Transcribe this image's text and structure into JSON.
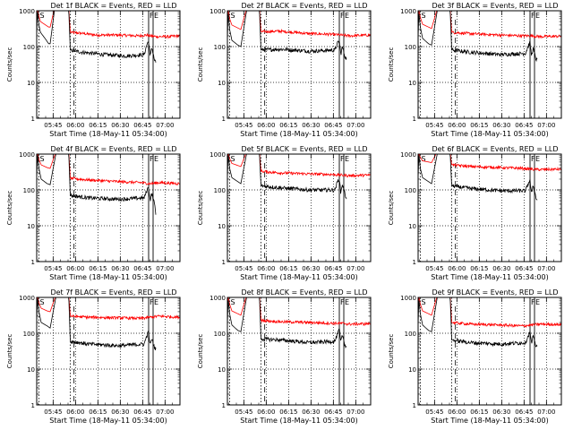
{
  "figure": {
    "ylabel": "Counts/sec",
    "xlabel": "Start Time (18-May-11 05:34:00)",
    "series_colors": {
      "events": "#000000",
      "lld": "#ff0000"
    }
  },
  "chart_data": [
    {
      "type": "line",
      "title": "Det 1f BLACK = Events, RED = LLD",
      "xlabel": "Start Time (18-May-11 05:34:00)",
      "ylabel": "Counts/sec",
      "yscale": "log",
      "ylim": [
        1,
        1000
      ],
      "y_ticks": [
        "1",
        "10",
        "100",
        "1000"
      ],
      "x_ticks": [
        "05:45",
        "06:00",
        "06:15",
        "06:30",
        "06:45",
        "07:00"
      ],
      "x_tick_minutes": [
        11,
        26,
        41,
        56,
        71,
        86
      ],
      "xlim_minutes": [
        0,
        96
      ],
      "markers": [
        {
          "label": "S",
          "minute": 1.5
        },
        {
          "label": "F",
          "minute": 75
        },
        {
          "label": "E",
          "minute": 78
        }
      ],
      "events": {
        "x_minutes": [
          0,
          0.5,
          1.5,
          2.5,
          6,
          8,
          9,
          12,
          17,
          21.5,
          22.5,
          30,
          45,
          60,
          72,
          74,
          75,
          76,
          77,
          79,
          80
        ],
        "y": [
          200,
          1000,
          400,
          250,
          160,
          120,
          120,
          1100,
          1300,
          1000,
          80,
          70,
          60,
          55,
          60,
          120,
          140,
          50,
          100,
          40,
          35
        ]
      },
      "lld": {
        "x_minutes": [
          0,
          0.5,
          1.5,
          2.5,
          6,
          8,
          9,
          12,
          17,
          21.5,
          22.5,
          28,
          40,
          55,
          68,
          74,
          76,
          80,
          88,
          96
        ],
        "y": [
          450,
          1100,
          700,
          500,
          400,
          350,
          350,
          1200,
          1300,
          1100,
          250,
          240,
          210,
          210,
          200,
          210,
          200,
          190,
          190,
          200
        ]
      }
    },
    {
      "type": "line",
      "title": "Det 2f BLACK = Events, RED = LLD",
      "xlabel": "Start Time (18-May-11 05:34:00)",
      "ylabel": "Counts/sec",
      "yscale": "log",
      "ylim": [
        1,
        1000
      ],
      "y_ticks": [
        "1",
        "10",
        "100",
        "1000"
      ],
      "x_ticks": [
        "05:45",
        "06:00",
        "06:15",
        "06:30",
        "06:45",
        "07:00"
      ],
      "x_tick_minutes": [
        11,
        26,
        41,
        56,
        71,
        86
      ],
      "xlim_minutes": [
        0,
        96
      ],
      "markers": [
        {
          "label": "S",
          "minute": 1.5
        },
        {
          "label": "F",
          "minute": 75
        },
        {
          "label": "E",
          "minute": 78
        }
      ],
      "events": {
        "x_minutes": [
          0,
          0.5,
          1.5,
          3,
          7,
          9,
          13,
          17,
          21.5,
          22.5,
          35,
          55,
          72,
          74,
          75,
          76,
          77,
          79,
          80
        ],
        "y": [
          150,
          900,
          300,
          150,
          110,
          100,
          1100,
          1300,
          1000,
          80,
          85,
          75,
          80,
          130,
          140,
          60,
          100,
          50,
          45
        ]
      },
      "lld": {
        "x_minutes": [
          0,
          0.5,
          1.5,
          3,
          7,
          9,
          13,
          17,
          21.5,
          22.5,
          35,
          55,
          70,
          76,
          82,
          96
        ],
        "y": [
          400,
          1100,
          600,
          400,
          330,
          300,
          1200,
          1300,
          1100,
          260,
          270,
          230,
          220,
          210,
          200,
          210
        ]
      }
    },
    {
      "type": "line",
      "title": "Det 3f BLACK = Events, RED = LLD",
      "xlabel": "Start Time (18-May-11 05:34:00)",
      "ylabel": "Counts/sec",
      "yscale": "log",
      "ylim": [
        1,
        1000
      ],
      "y_ticks": [
        "1",
        "10",
        "100",
        "1000"
      ],
      "x_ticks": [
        "05:45",
        "06:00",
        "06:15",
        "06:30",
        "06:45",
        "07:00"
      ],
      "x_tick_minutes": [
        11,
        26,
        41,
        56,
        71,
        86
      ],
      "xlim_minutes": [
        0,
        96
      ],
      "markers": [
        {
          "label": "S",
          "minute": 1.5
        },
        {
          "label": "F",
          "minute": 75
        },
        {
          "label": "E",
          "minute": 78
        }
      ],
      "events": {
        "x_minutes": [
          0,
          0.5,
          1.5,
          3,
          7,
          9,
          13,
          17,
          21.5,
          22.5,
          35,
          55,
          72,
          74,
          75,
          76,
          77,
          79,
          80
        ],
        "y": [
          160,
          900,
          350,
          170,
          120,
          110,
          1100,
          1300,
          1000,
          80,
          70,
          60,
          65,
          110,
          130,
          55,
          90,
          45,
          40
        ]
      },
      "lld": {
        "x_minutes": [
          0,
          0.5,
          1.5,
          3,
          7,
          9,
          13,
          17,
          21.5,
          22.5,
          35,
          55,
          70,
          76,
          82,
          96
        ],
        "y": [
          420,
          1100,
          650,
          420,
          350,
          320,
          1200,
          1300,
          1100,
          250,
          230,
          210,
          200,
          200,
          190,
          195
        ]
      }
    },
    {
      "type": "line",
      "title": "Det 4f BLACK = Events, RED = LLD",
      "xlabel": "Start Time (18-May-11 05:34:00)",
      "ylabel": "Counts/sec",
      "yscale": "log",
      "ylim": [
        1,
        1000
      ],
      "y_ticks": [
        "1",
        "10",
        "100",
        "1000"
      ],
      "x_ticks": [
        "05:45",
        "06:00",
        "06:15",
        "06:30",
        "06:45",
        "07:00"
      ],
      "x_tick_minutes": [
        11,
        26,
        41,
        56,
        71,
        86
      ],
      "xlim_minutes": [
        0,
        96
      ],
      "markers": [
        {
          "label": "S",
          "minute": 1.5
        },
        {
          "label": "F",
          "minute": 75
        },
        {
          "label": "E",
          "minute": 78
        }
      ],
      "events": {
        "x_minutes": [
          0,
          0.5,
          1.5,
          3,
          7,
          9,
          13,
          17,
          21.5,
          22.5,
          35,
          55,
          72,
          74,
          75,
          76,
          77,
          79,
          80
        ],
        "y": [
          200,
          1000,
          400,
          200,
          150,
          140,
          1100,
          1300,
          1000,
          70,
          60,
          55,
          60,
          100,
          120,
          50,
          80,
          40,
          20
        ]
      },
      "lld": {
        "x_minutes": [
          0,
          0.5,
          1.5,
          3,
          7,
          9,
          13,
          17,
          21.5,
          22.5,
          35,
          55,
          70,
          76,
          82,
          96
        ],
        "y": [
          450,
          1100,
          700,
          500,
          420,
          400,
          1200,
          1300,
          1100,
          210,
          190,
          170,
          160,
          150,
          160,
          150
        ]
      }
    },
    {
      "type": "line",
      "title": "Det 5f BLACK = Events, RED = LLD",
      "xlabel": "Start Time (18-May-11 05:34:00)",
      "ylabel": "Counts/sec",
      "yscale": "log",
      "ylim": [
        1,
        1000
      ],
      "y_ticks": [
        "1",
        "10",
        "100",
        "1000"
      ],
      "x_ticks": [
        "05:45",
        "06:00",
        "06:15",
        "06:30",
        "06:45",
        "07:00"
      ],
      "x_tick_minutes": [
        11,
        26,
        41,
        56,
        71,
        86
      ],
      "xlim_minutes": [
        0,
        96
      ],
      "markers": [
        {
          "label": "S",
          "minute": 1.5
        },
        {
          "label": "F",
          "minute": 75
        },
        {
          "label": "E",
          "minute": 78
        }
      ],
      "events": {
        "x_minutes": [
          0,
          0.5,
          1.5,
          3,
          7,
          9,
          13,
          17,
          21.5,
          22.5,
          35,
          55,
          72,
          74,
          75,
          76,
          77,
          79,
          80
        ],
        "y": [
          200,
          1000,
          400,
          220,
          170,
          150,
          1100,
          1300,
          1000,
          130,
          115,
          100,
          100,
          180,
          200,
          80,
          150,
          70,
          60
        ]
      },
      "lld": {
        "x_minutes": [
          0,
          0.5,
          1.5,
          3,
          7,
          9,
          13,
          17,
          21.5,
          22.5,
          35,
          55,
          70,
          76,
          82,
          96
        ],
        "y": [
          500,
          1100,
          750,
          550,
          480,
          450,
          1200,
          1300,
          1100,
          330,
          300,
          280,
          270,
          260,
          250,
          260
        ]
      }
    },
    {
      "type": "line",
      "title": "Det 6f BLACK = Events, RED = LLD",
      "xlabel": "Start Time (18-May-11 05:34:00)",
      "ylabel": "Counts/sec",
      "yscale": "log",
      "ylim": [
        1,
        1000
      ],
      "y_ticks": [
        "1",
        "10",
        "100",
        "1000"
      ],
      "x_ticks": [
        "05:45",
        "06:00",
        "06:15",
        "06:30",
        "06:45",
        "07:00"
      ],
      "x_tick_minutes": [
        11,
        26,
        41,
        56,
        71,
        86
      ],
      "xlim_minutes": [
        0,
        96
      ],
      "markers": [
        {
          "label": "S",
          "minute": 1.5
        },
        {
          "label": "F",
          "minute": 75
        },
        {
          "label": "E",
          "minute": 78
        }
      ],
      "events": {
        "x_minutes": [
          0,
          0.5,
          1.5,
          3,
          7,
          9,
          13,
          17,
          21.5,
          22.5,
          35,
          55,
          72,
          74,
          75,
          76,
          77,
          79,
          80
        ],
        "y": [
          200,
          1000,
          400,
          220,
          170,
          150,
          1100,
          1300,
          1000,
          130,
          110,
          95,
          95,
          160,
          180,
          75,
          140,
          60,
          50
        ]
      },
      "lld": {
        "x_minutes": [
          0,
          0.5,
          1.5,
          3,
          7,
          9,
          13,
          17,
          21.5,
          22.5,
          35,
          55,
          70,
          76,
          82,
          96
        ],
        "y": [
          600,
          1100,
          800,
          650,
          600,
          580,
          1200,
          1300,
          1100,
          500,
          450,
          420,
          400,
          380,
          370,
          380
        ]
      }
    },
    {
      "type": "line",
      "title": "Det 7f BLACK = Events, RED = LLD",
      "xlabel": "Start Time (18-May-11 05:34:00)",
      "ylabel": "Counts/sec",
      "yscale": "log",
      "ylim": [
        1,
        1000
      ],
      "y_ticks": [
        "1",
        "10",
        "100",
        "1000"
      ],
      "x_ticks": [
        "05:45",
        "06:00",
        "06:15",
        "06:30",
        "06:45",
        "07:00"
      ],
      "x_tick_minutes": [
        11,
        26,
        41,
        56,
        71,
        86
      ],
      "xlim_minutes": [
        0,
        96
      ],
      "markers": [
        {
          "label": "S",
          "minute": 1.5
        },
        {
          "label": "F",
          "minute": 75
        },
        {
          "label": "E",
          "minute": 78
        }
      ],
      "events": {
        "x_minutes": [
          0,
          0.5,
          1.5,
          3,
          7,
          9,
          13,
          17,
          21.5,
          22.5,
          35,
          55,
          72,
          74,
          75,
          76,
          77,
          79,
          80
        ],
        "y": [
          200,
          1000,
          400,
          200,
          160,
          140,
          1100,
          1300,
          1000,
          60,
          50,
          45,
          50,
          90,
          110,
          45,
          70,
          40,
          35
        ]
      },
      "lld": {
        "x_minutes": [
          0,
          0.5,
          1.5,
          3,
          7,
          9,
          13,
          17,
          21.5,
          22.5,
          35,
          55,
          70,
          76,
          82,
          96
        ],
        "y": [
          450,
          1100,
          700,
          500,
          420,
          400,
          1200,
          1300,
          1100,
          300,
          280,
          270,
          260,
          280,
          300,
          280
        ]
      }
    },
    {
      "type": "line",
      "title": "Det 8f BLACK = Events, RED = LLD",
      "xlabel": "Start Time (18-May-11 05:34:00)",
      "ylabel": "Counts/sec",
      "yscale": "log",
      "ylim": [
        1,
        1000
      ],
      "y_ticks": [
        "1",
        "10",
        "100",
        "1000"
      ],
      "x_ticks": [
        "05:45",
        "06:00",
        "06:15",
        "06:30",
        "06:45",
        "07:00"
      ],
      "x_tick_minutes": [
        11,
        26,
        41,
        56,
        71,
        86
      ],
      "xlim_minutes": [
        0,
        96
      ],
      "markers": [
        {
          "label": "S",
          "minute": 1.5
        },
        {
          "label": "F",
          "minute": 75
        },
        {
          "label": "E",
          "minute": 78
        }
      ],
      "events": {
        "x_minutes": [
          0,
          0.5,
          1.5,
          3,
          7,
          9,
          13,
          17,
          21.5,
          22.5,
          35,
          55,
          72,
          74,
          75,
          76,
          77,
          79,
          80
        ],
        "y": [
          160,
          900,
          350,
          170,
          120,
          110,
          1100,
          1300,
          1000,
          70,
          65,
          55,
          60,
          100,
          130,
          55,
          90,
          45,
          40
        ]
      },
      "lld": {
        "x_minutes": [
          0,
          0.5,
          1.5,
          3,
          7,
          9,
          13,
          17,
          21.5,
          22.5,
          35,
          55,
          70,
          76,
          82,
          96
        ],
        "y": [
          420,
          1100,
          650,
          420,
          350,
          320,
          1200,
          1300,
          1100,
          230,
          210,
          200,
          190,
          190,
          180,
          185
        ]
      }
    },
    {
      "type": "line",
      "title": "Det 9f BLACK = Events, RED = LLD",
      "xlabel": "Start Time (18-May-11 05:34:00)",
      "ylabel": "Counts/sec",
      "yscale": "log",
      "ylim": [
        1,
        1000
      ],
      "y_ticks": [
        "1",
        "10",
        "100",
        "1000"
      ],
      "x_ticks": [
        "05:45",
        "06:00",
        "06:15",
        "06:30",
        "06:45",
        "07:00"
      ],
      "x_tick_minutes": [
        11,
        26,
        41,
        56,
        71,
        86
      ],
      "xlim_minutes": [
        0,
        96
      ],
      "markers": [
        {
          "label": "S",
          "minute": 1.5
        },
        {
          "label": "F",
          "minute": 75
        },
        {
          "label": "E",
          "minute": 78
        }
      ],
      "events": {
        "x_minutes": [
          0,
          0.5,
          1.5,
          3,
          7,
          9,
          13,
          17,
          21.5,
          22.5,
          35,
          55,
          72,
          74,
          75,
          76,
          77,
          79,
          80
        ],
        "y": [
          160,
          900,
          350,
          170,
          120,
          110,
          1100,
          1300,
          1000,
          65,
          55,
          50,
          55,
          90,
          110,
          50,
          80,
          45,
          45
        ]
      },
      "lld": {
        "x_minutes": [
          0,
          0.5,
          1.5,
          3,
          7,
          9,
          13,
          17,
          21.5,
          22.5,
          35,
          55,
          70,
          76,
          82,
          96
        ],
        "y": [
          420,
          1100,
          650,
          420,
          350,
          320,
          1200,
          1300,
          1100,
          200,
          180,
          170,
          160,
          170,
          180,
          175
        ]
      }
    }
  ]
}
